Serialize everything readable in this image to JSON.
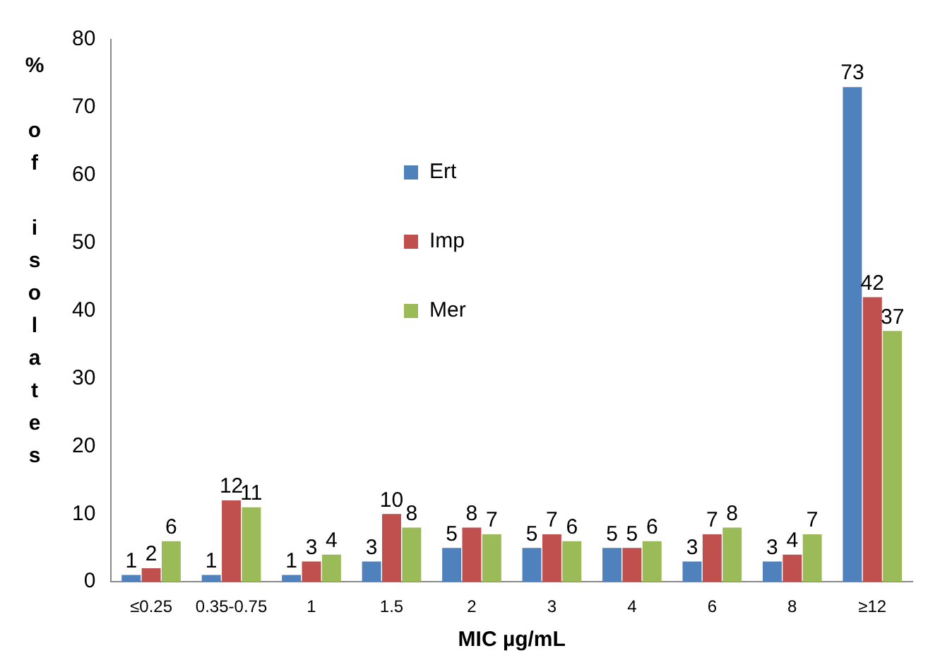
{
  "chart_data": {
    "type": "bar",
    "xlabel": "MIC µg/mL",
    "ylabel": "% of isolates",
    "categories": [
      "≤0.25",
      "0.35-0.75",
      "1",
      "1.5",
      "2",
      "3",
      "4",
      "6",
      "8",
      "≥12"
    ],
    "series": [
      {
        "name": "Ert",
        "color": "#4f81bd",
        "values": [
          1,
          1,
          1,
          3,
          5,
          5,
          5,
          3,
          3,
          73
        ]
      },
      {
        "name": "Imp",
        "color": "#c0504d",
        "values": [
          2,
          12,
          3,
          10,
          8,
          7,
          5,
          7,
          4,
          42
        ]
      },
      {
        "name": "Mer",
        "color": "#9bbb59",
        "values": [
          6,
          11,
          4,
          8,
          7,
          6,
          6,
          8,
          7,
          37
        ]
      }
    ],
    "ylim": [
      0,
      80
    ],
    "yticks": [
      0,
      10,
      20,
      30,
      40,
      50,
      60,
      70,
      80
    ],
    "grid": false,
    "legend": "top",
    "data_labels": true
  }
}
